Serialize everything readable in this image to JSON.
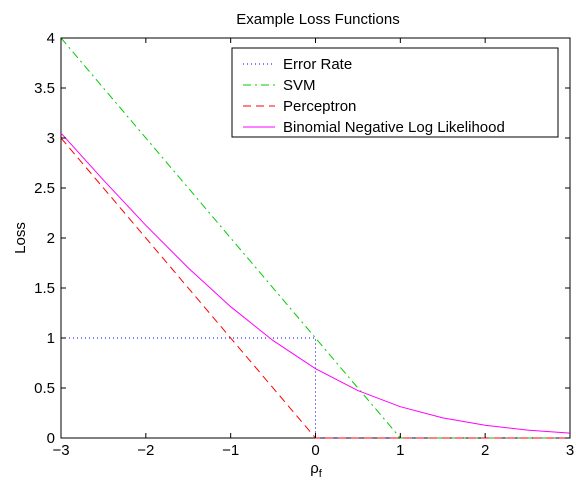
{
  "chart_data": {
    "type": "line",
    "title": "Example Loss Functions",
    "xlabel_base": "ρ",
    "xlabel_sub": "f",
    "ylabel": "Loss",
    "xlim": [
      -3,
      3
    ],
    "ylim": [
      0,
      4
    ],
    "xticks": [
      -3,
      -2,
      -1,
      0,
      1,
      2,
      3
    ],
    "xtick_labels": [
      "−3",
      "−2",
      "−1",
      "0",
      "1",
      "2",
      "3"
    ],
    "yticks": [
      0,
      0.5,
      1,
      1.5,
      2,
      2.5,
      3,
      3.5,
      4
    ],
    "ytick_labels": [
      "0",
      "0.5",
      "1",
      "1.5",
      "2",
      "2.5",
      "3",
      "3.5",
      "4"
    ],
    "grid": false,
    "legend_position": "top-right",
    "series": [
      {
        "name": "Error Rate",
        "color": "#0000ff",
        "style": "dotted",
        "x": [
          -3,
          0,
          0,
          3
        ],
        "y": [
          1,
          1,
          0,
          0
        ]
      },
      {
        "name": "SVM",
        "color": "#00cc00",
        "style": "dashdot",
        "x": [
          -3,
          1,
          3
        ],
        "y": [
          4,
          0,
          0
        ]
      },
      {
        "name": "Perceptron",
        "color": "#ff0000",
        "style": "dashed",
        "x": [
          -3,
          0,
          3
        ],
        "y": [
          3,
          0,
          0
        ]
      },
      {
        "name": "Binomial Negative Log Likelihood",
        "color": "#ff00ff",
        "style": "solid",
        "x": [
          -3,
          -2.5,
          -2,
          -1.5,
          -1,
          -0.5,
          0,
          0.5,
          1,
          1.5,
          2,
          2.5,
          3
        ],
        "y": [
          3.049,
          2.579,
          2.127,
          1.701,
          1.313,
          0.974,
          0.693,
          0.474,
          0.313,
          0.201,
          0.127,
          0.079,
          0.049
        ]
      }
    ]
  }
}
